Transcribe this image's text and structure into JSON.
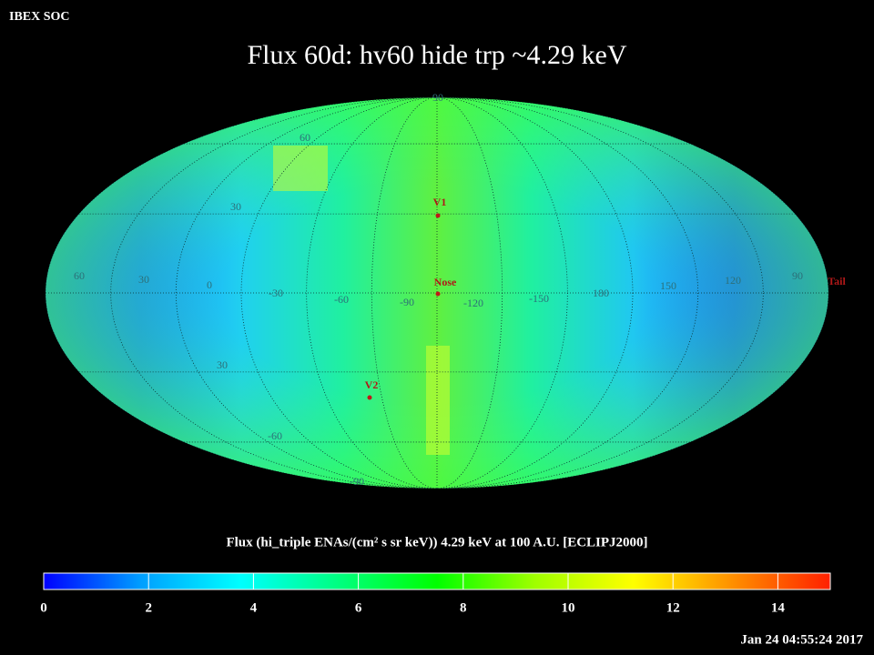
{
  "header": "IBEX SOC",
  "title": "Flux   60d: hv60 hide trp ~4.29 keV",
  "map": {
    "grid_labels": [
      "90",
      "60",
      "30",
      "60",
      "30",
      "0",
      "-30",
      "-60",
      "-90",
      "-120",
      "-150",
      "180",
      "150",
      "120",
      "90",
      "30",
      "-60",
      "-90"
    ],
    "markers": [
      {
        "label": "V1"
      },
      {
        "label": "Nose"
      },
      {
        "label": "V2"
      },
      {
        "label": "Tail"
      }
    ]
  },
  "colorbar": {
    "label": "Flux (hi_triple ENAs/(cm² s sr keV))  4.29 keV at 100 A.U. [ECLIPJ2000]",
    "lim": [
      0,
      15
    ],
    "ticks": [
      0,
      2,
      4,
      6,
      8,
      10,
      12,
      14
    ],
    "colors": [
      "#0000ff",
      "#00a0ff",
      "#00ffff",
      "#00ff80",
      "#00ff00",
      "#a0ff00",
      "#ffff00",
      "#ff9000",
      "#ff2000"
    ]
  },
  "timestamp": "Jan 24 04:55:24 2017"
}
